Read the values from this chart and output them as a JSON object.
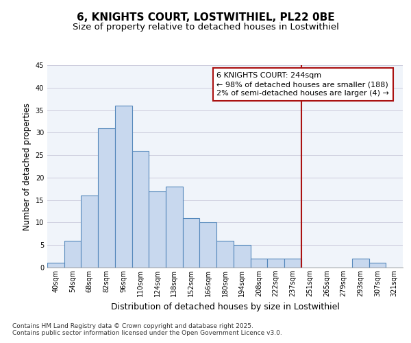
{
  "title": "6, KNIGHTS COURT, LOSTWITHIEL, PL22 0BE",
  "subtitle": "Size of property relative to detached houses in Lostwithiel",
  "xlabel": "Distribution of detached houses by size in Lostwithiel",
  "ylabel": "Number of detached properties",
  "categories": [
    "40sqm",
    "54sqm",
    "68sqm",
    "82sqm",
    "96sqm",
    "110sqm",
    "124sqm",
    "138sqm",
    "152sqm",
    "166sqm",
    "180sqm",
    "194sqm",
    "208sqm",
    "222sqm",
    "237sqm",
    "251sqm",
    "265sqm",
    "279sqm",
    "293sqm",
    "307sqm",
    "321sqm"
  ],
  "values": [
    1,
    6,
    16,
    31,
    36,
    26,
    17,
    18,
    11,
    10,
    6,
    5,
    2,
    2,
    2,
    0,
    0,
    0,
    2,
    1,
    0
  ],
  "bar_face_color": "#c8d8ee",
  "bar_edge_color": "#5588bb",
  "bar_edge_width": 0.8,
  "highlight_border_color": "#aa1111",
  "vertical_line_x": 14.5,
  "ylim": [
    0,
    45
  ],
  "yticks": [
    0,
    5,
    10,
    15,
    20,
    25,
    30,
    35,
    40,
    45
  ],
  "annotation_text": "6 KNIGHTS COURT: 244sqm\n← 98% of detached houses are smaller (188)\n2% of semi-detached houses are larger (4) →",
  "annotation_box_facecolor": "#ffffff",
  "annotation_box_edgecolor": "#aa1111",
  "plot_bg_color": "#f0f4fa",
  "fig_bg_color": "#ffffff",
  "grid_color": "#ccccdd",
  "footer_text": "Contains HM Land Registry data © Crown copyright and database right 2025.\nContains public sector information licensed under the Open Government Licence v3.0.",
  "title_fontsize": 11,
  "subtitle_fontsize": 9.5,
  "xlabel_fontsize": 9,
  "ylabel_fontsize": 8.5,
  "tick_fontsize": 7,
  "annotation_fontsize": 8,
  "footer_fontsize": 6.5
}
